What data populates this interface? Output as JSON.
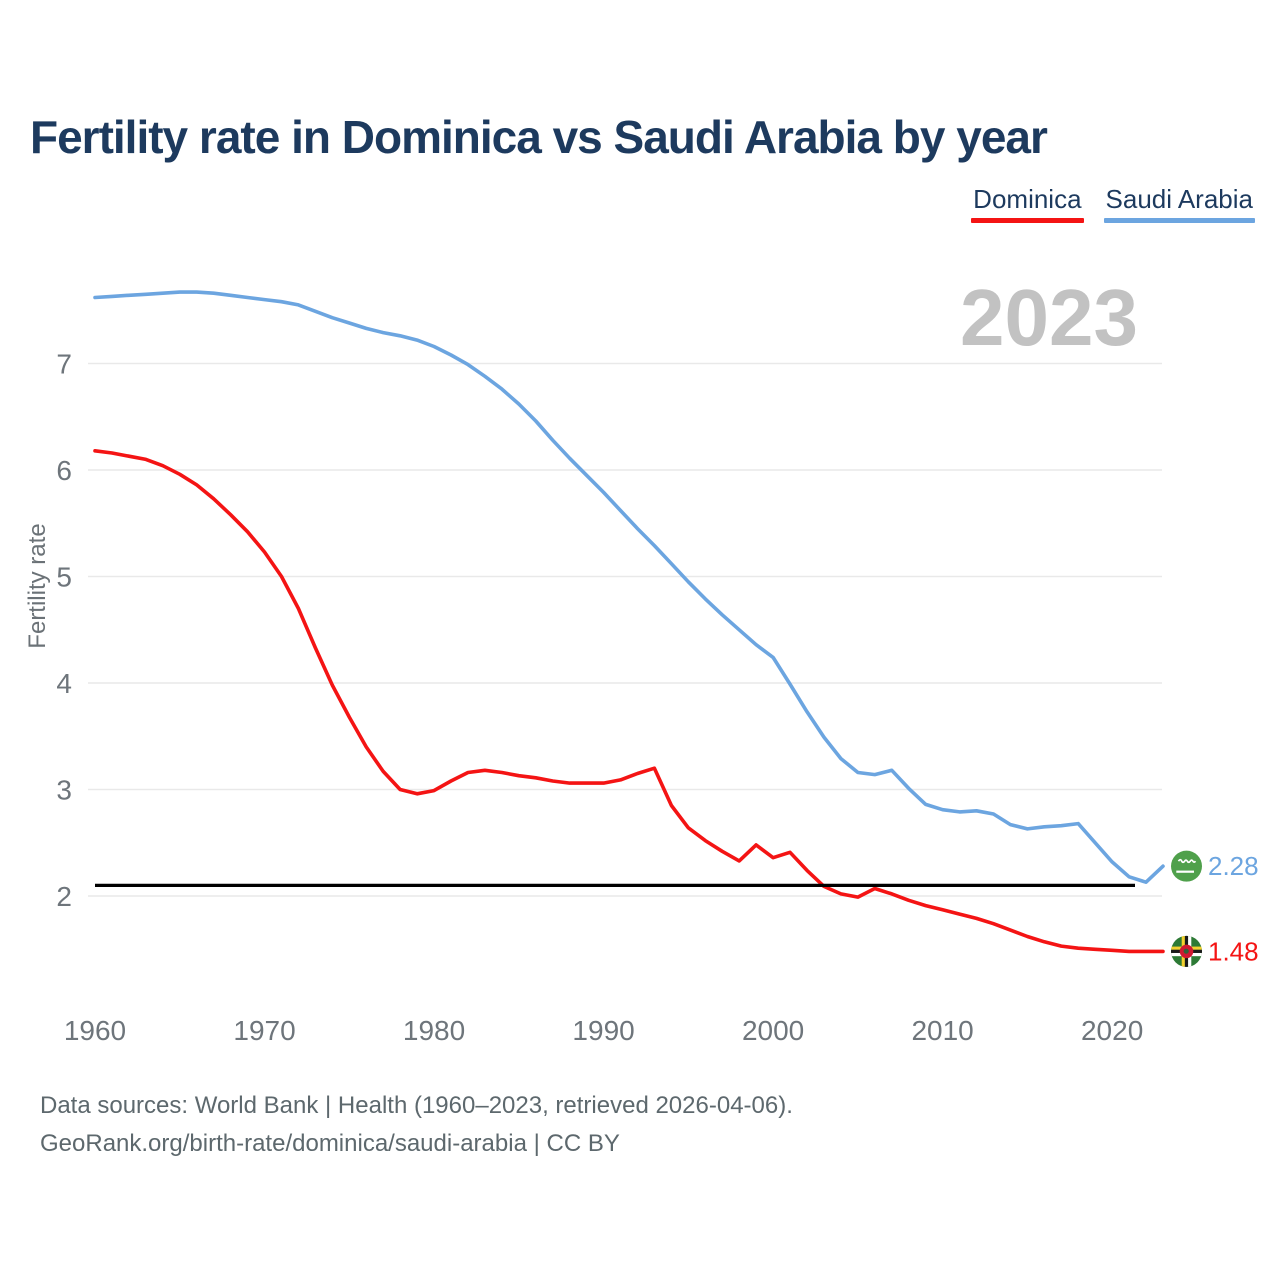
{
  "footer": {
    "line1": "Data sources: World Bank | Health (1960–2023, retrieved 2026-04-06).",
    "line2": "GeoRank.org/birth-rate/dominica/saudi-arabia | CC BY"
  },
  "chart_data": {
    "type": "line",
    "title": "Fertility rate in Dominica vs Saudi Arabia by year",
    "ylabel": "Fertility rate",
    "xlabel": "",
    "watermark": "2023",
    "grid": "horizontal",
    "legend_position": "top-right",
    "ylim": [
      1.3,
      7.8
    ],
    "xlim": [
      1960,
      2023
    ],
    "yticks": [
      2,
      3,
      4,
      5,
      6,
      7
    ],
    "xticks": [
      1960,
      1970,
      1980,
      1990,
      2000,
      2010,
      2020
    ],
    "ref_line": {
      "value": 2.1,
      "color": "#000000"
    },
    "x": [
      1960,
      1961,
      1962,
      1963,
      1964,
      1965,
      1966,
      1967,
      1968,
      1969,
      1970,
      1971,
      1972,
      1973,
      1974,
      1975,
      1976,
      1977,
      1978,
      1979,
      1980,
      1981,
      1982,
      1983,
      1984,
      1985,
      1986,
      1987,
      1988,
      1989,
      1990,
      1991,
      1992,
      1993,
      1994,
      1995,
      1996,
      1997,
      1998,
      1999,
      2000,
      2001,
      2002,
      2003,
      2004,
      2005,
      2006,
      2007,
      2008,
      2009,
      2010,
      2011,
      2012,
      2013,
      2014,
      2015,
      2016,
      2017,
      2018,
      2019,
      2020,
      2021,
      2022,
      2023
    ],
    "series": [
      {
        "name": "Saudi Arabia",
        "color": "#6ca5e0",
        "flag": "saudi-arabia",
        "end_label": "2.28",
        "values": [
          7.62,
          7.63,
          7.64,
          7.65,
          7.66,
          7.67,
          7.67,
          7.66,
          7.64,
          7.62,
          7.6,
          7.58,
          7.55,
          7.49,
          7.43,
          7.38,
          7.33,
          7.29,
          7.26,
          7.22,
          7.16,
          7.08,
          6.99,
          6.88,
          6.76,
          6.62,
          6.46,
          6.28,
          6.11,
          5.95,
          5.79,
          5.62,
          5.45,
          5.29,
          5.12,
          4.95,
          4.79,
          4.64,
          4.5,
          4.36,
          4.24,
          3.99,
          3.73,
          3.49,
          3.29,
          3.16,
          3.14,
          3.18,
          3.01,
          2.86,
          2.81,
          2.79,
          2.8,
          2.77,
          2.67,
          2.63,
          2.65,
          2.66,
          2.68,
          2.5,
          2.32,
          2.18,
          2.13,
          2.28
        ]
      },
      {
        "name": "Dominica",
        "color": "#f41414",
        "flag": "dominica",
        "end_label": "1.48",
        "values": [
          6.18,
          6.16,
          6.13,
          6.1,
          6.04,
          5.96,
          5.86,
          5.73,
          5.58,
          5.42,
          5.23,
          5.0,
          4.7,
          4.33,
          3.98,
          3.68,
          3.4,
          3.17,
          3.0,
          2.96,
          2.99,
          3.08,
          3.16,
          3.18,
          3.16,
          3.13,
          3.11,
          3.08,
          3.06,
          3.06,
          3.06,
          3.09,
          3.15,
          3.2,
          2.85,
          2.64,
          2.52,
          2.42,
          2.33,
          2.48,
          2.36,
          2.41,
          2.24,
          2.09,
          2.02,
          1.99,
          2.07,
          2.02,
          1.96,
          1.91,
          1.87,
          1.83,
          1.79,
          1.74,
          1.68,
          1.62,
          1.57,
          1.53,
          1.51,
          1.5,
          1.49,
          1.48,
          1.48,
          1.48
        ]
      }
    ],
    "legend_order": [
      "Dominica",
      "Saudi Arabia"
    ]
  }
}
